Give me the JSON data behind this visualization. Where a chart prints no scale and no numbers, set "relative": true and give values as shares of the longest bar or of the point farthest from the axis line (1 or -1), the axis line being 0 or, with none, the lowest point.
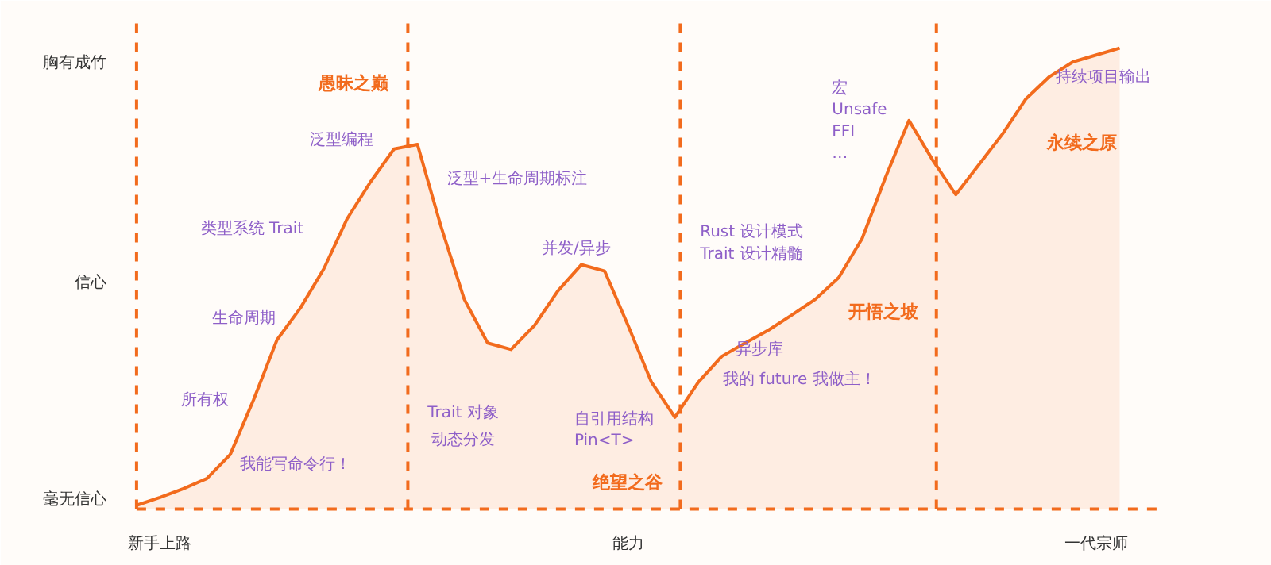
{
  "chart_data": {
    "type": "area",
    "relative": true,
    "categories": [
      null,
      "新手上路",
      null,
      null,
      null,
      null,
      null,
      null,
      null,
      null,
      null,
      null,
      null,
      null,
      null,
      null,
      null,
      null,
      null,
      null,
      null,
      "能力",
      null,
      null,
      null,
      null,
      null,
      null,
      null,
      null,
      null,
      null,
      null,
      null,
      null,
      null,
      null,
      null,
      null,
      null,
      null,
      "一代宗师",
      null
    ],
    "series": [
      {
        "color": "#f26b1d",
        "values": [
          0.008,
          0.025,
          0.044,
          0.066,
          0.118,
          0.237,
          0.367,
          0.436,
          0.521,
          0.63,
          0.71,
          0.781,
          0.791,
          0.614,
          0.455,
          0.36,
          0.346,
          0.398,
          0.473,
          0.53,
          0.516,
          0.398,
          0.275,
          0.199,
          0.275,
          0.331,
          0.36,
          0.388,
          0.421,
          0.455,
          0.502,
          0.587,
          0.72,
          0.843,
          0.758,
          0.682,
          0.748,
          0.814,
          0.89,
          0.938,
          0.97,
          0.985,
          1
        ]
      }
    ],
    "line_style": "solid",
    "annotations": [
      "毫无信心",
      "信心",
      "胸有成竹",
      "愚昧之巅",
      "绝望之谷",
      "开悟之坡",
      "永续之原",
      "我能写命令行！",
      "所有权",
      "生命周期",
      "类型系统 Trait",
      "泛型编程",
      "泛型+生命周期标注",
      "并发/异步",
      "Trait 对象",
      "动态分发",
      "自引用结构\nPin<T>",
      "Rust 设计模式\nTrait 设计精髓",
      "异步库",
      "我的 future 我做主！",
      "宏\nUnsafe\nFFI\n…",
      "持续项目输出"
    ]
  }
}
